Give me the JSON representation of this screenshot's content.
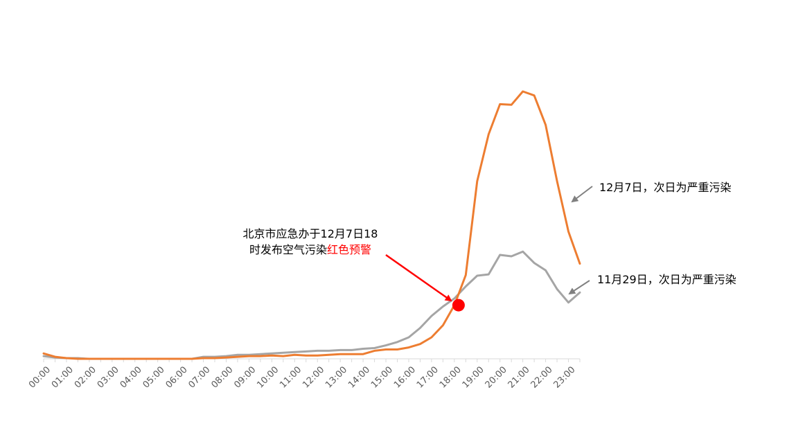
{
  "chart_data": {
    "type": "line",
    "title": "",
    "xlabel": "",
    "ylabel": "",
    "x": [
      "00:00",
      "00:30",
      "01:00",
      "01:30",
      "02:00",
      "02:30",
      "03:00",
      "03:30",
      "04:00",
      "04:30",
      "05:00",
      "05:30",
      "06:00",
      "06:30",
      "07:00",
      "07:30",
      "08:00",
      "08:30",
      "09:00",
      "09:30",
      "10:00",
      "10:30",
      "11:00",
      "11:30",
      "12:00",
      "12:30",
      "13:00",
      "13:30",
      "14:00",
      "14:30",
      "15:00",
      "15:30",
      "16:00",
      "16:30",
      "17:00",
      "17:30",
      "18:00",
      "18:30",
      "19:00",
      "19:30",
      "20:00",
      "20:30",
      "21:00",
      "21:30",
      "22:00",
      "22:30",
      "23:00",
      "23:30"
    ],
    "xtick_labels": [
      "00:00",
      "01:00",
      "02:00",
      "03:00",
      "04:00",
      "05:00",
      "06:00",
      "07:00",
      "08:00",
      "09:00",
      "10:00",
      "11:00",
      "12:00",
      "13:00",
      "14:00",
      "15:00",
      "16:00",
      "17:00",
      "18:00",
      "19:00",
      "20:00",
      "21:00",
      "22:00",
      "23:00"
    ],
    "ylim": [
      0,
      400
    ],
    "grid": false,
    "series": [
      {
        "name": "12月7日，次日为严重污染",
        "color": "#ED7D31",
        "values": [
          8,
          3,
          1,
          0,
          0,
          0,
          0,
          0,
          0,
          0,
          0,
          0,
          0,
          0,
          1,
          1,
          2,
          3,
          4,
          4,
          5,
          4,
          6,
          5,
          5,
          6,
          7,
          7,
          7,
          12,
          14,
          14,
          17,
          22,
          32,
          50,
          80,
          125,
          265,
          335,
          380,
          379,
          399,
          393,
          349,
          265,
          190,
          142
        ]
      },
      {
        "name": "11月29日，次日为严重污染",
        "color": "#A5A5A5",
        "values": [
          4,
          2,
          1,
          1,
          0,
          0,
          0,
          0,
          0,
          0,
          0,
          0,
          0,
          0,
          3,
          3,
          4,
          6,
          6,
          7,
          8,
          9,
          10,
          11,
          12,
          12,
          13,
          13,
          15,
          16,
          20,
          25,
          32,
          46,
          64,
          78,
          90,
          108,
          124,
          126,
          155,
          153,
          160,
          143,
          132,
          104,
          84,
          99
        ]
      }
    ],
    "annotations": [
      {
        "text_line1": "北京市应急办于12月7日18",
        "text_line2_prefix": "时发布空气污染",
        "text_line2_highlight": "红色预警",
        "highlight_color": "#FF0000",
        "arrow_color": "#FF0000",
        "marker_color": "#FF0000",
        "target_x": "18:00",
        "target_value": 80
      },
      {
        "series_label": "12月7日，次日为严重污染",
        "arrow_color": "#808080"
      },
      {
        "series_label": "11月29日，次日为严重污染",
        "arrow_color": "#808080"
      }
    ]
  }
}
